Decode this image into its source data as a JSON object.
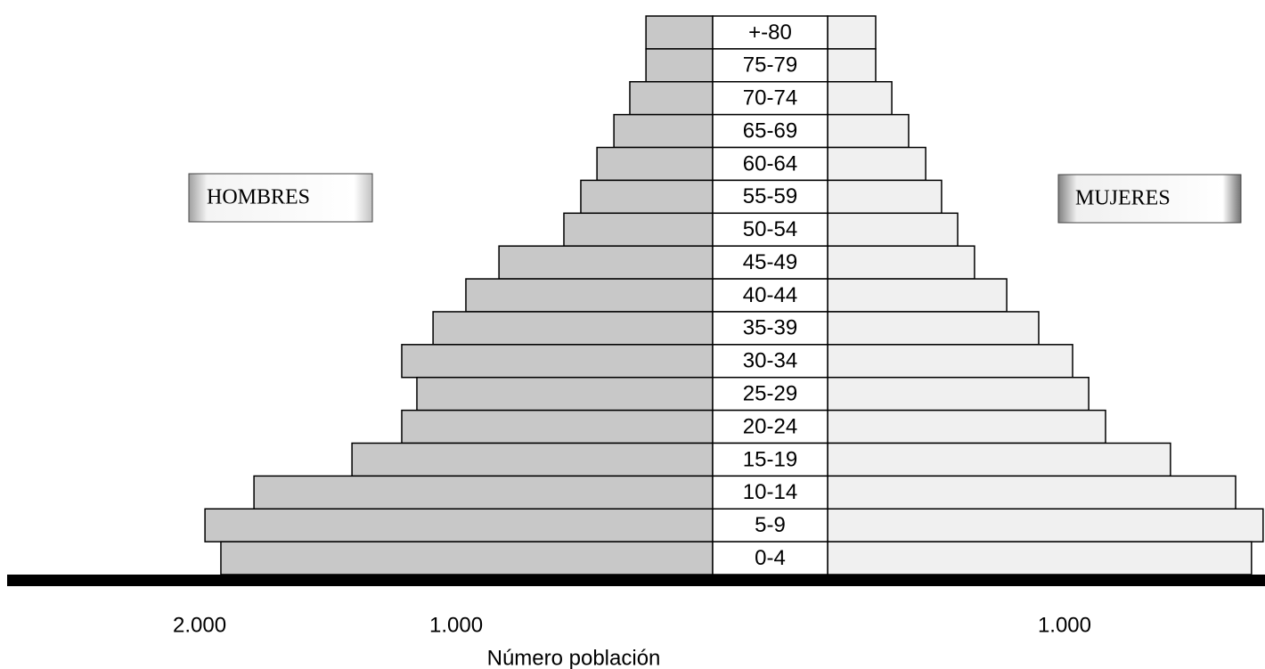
{
  "chart_data": {
    "type": "pyramid",
    "x_label": "Número población",
    "categories": [
      "+-80",
      "75-79",
      "70-74",
      "65-69",
      "60-64",
      "55-59",
      "50-54",
      "45-49",
      "40-44",
      "35-39",
      "30-34",
      "25-29",
      "20-24",
      "15-19",
      "10-14",
      "5-9",
      "0-4"
    ],
    "series": [
      {
        "name": "HOMBRES",
        "color": "#c8c8c8",
        "values": [
          260,
          260,
          323,
          385,
          451,
          514,
          580,
          833,
          962,
          1090,
          1212,
          1153,
          1212,
          1406,
          1788,
          1979,
          1917
        ],
        "xlim": [
          0,
          2778
        ],
        "xticks": [
          {
            "value": 2000,
            "label": "2.000"
          },
          {
            "value": 1000,
            "label": "1.000"
          }
        ]
      },
      {
        "name": "MUJERES",
        "color": "#f0f0f0",
        "values": [
          203,
          203,
          271,
          342,
          414,
          481,
          549,
          620,
          756,
          891,
          1034,
          1102,
          1173,
          1447,
          1722,
          1838,
          1789
        ],
        "xlim": [
          0,
          1846
        ],
        "xticks": [
          {
            "value": 1000,
            "label": "1.000"
          }
        ]
      }
    ]
  }
}
